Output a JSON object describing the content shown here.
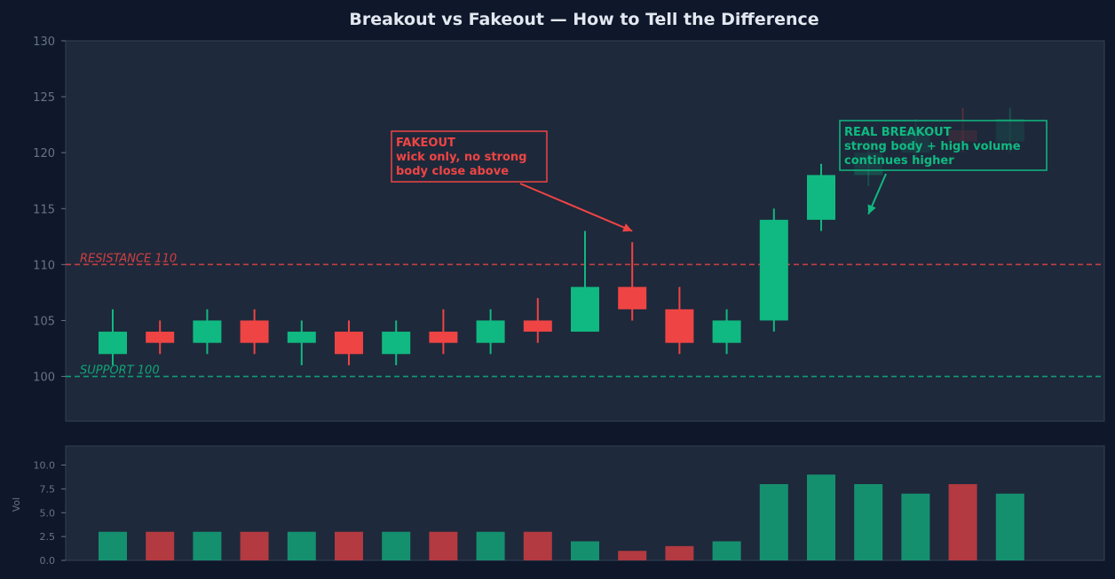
{
  "chart_data": [
    {
      "type": "candlestick",
      "title": "Breakout vs Fakeout — How to Tell the Difference",
      "ylim": [
        96,
        130
      ],
      "yticks": [
        100,
        105,
        110,
        115,
        120,
        125,
        130
      ],
      "grid": false,
      "colors": {
        "up": "#10b981",
        "down": "#ef4444"
      },
      "candles": [
        {
          "o": 102,
          "h": 106,
          "l": 101,
          "c": 104
        },
        {
          "o": 104,
          "h": 105,
          "l": 102,
          "c": 103
        },
        {
          "o": 103,
          "h": 106,
          "l": 102,
          "c": 105
        },
        {
          "o": 105,
          "h": 106,
          "l": 102,
          "c": 103
        },
        {
          "o": 103,
          "h": 105,
          "l": 101,
          "c": 104
        },
        {
          "o": 104,
          "h": 105,
          "l": 101,
          "c": 102
        },
        {
          "o": 102,
          "h": 105,
          "l": 101,
          "c": 104
        },
        {
          "o": 104,
          "h": 106,
          "l": 102,
          "c": 103
        },
        {
          "o": 103,
          "h": 106,
          "l": 102,
          "c": 105
        },
        {
          "o": 105,
          "h": 107,
          "l": 103,
          "c": 104
        },
        {
          "o": 104,
          "h": 113,
          "l": 104,
          "c": 108
        },
        {
          "o": 108,
          "h": 112,
          "l": 105,
          "c": 106
        },
        {
          "o": 106,
          "h": 108,
          "l": 102,
          "c": 103
        },
        {
          "o": 103,
          "h": 106,
          "l": 102,
          "c": 105
        },
        {
          "o": 105,
          "h": 115,
          "l": 104,
          "c": 114
        },
        {
          "o": 114,
          "h": 119,
          "l": 113,
          "c": 118
        },
        {
          "o": 118,
          "h": 121,
          "l": 117,
          "c": 120
        },
        {
          "o": 120,
          "h": 123,
          "l": 119,
          "c": 122
        },
        {
          "o": 122,
          "h": 124,
          "l": 120,
          "c": 121
        },
        {
          "o": 121,
          "h": 124,
          "l": 120,
          "c": 123
        }
      ],
      "levels": [
        {
          "value": 110,
          "label": "RESISTANCE 110",
          "color": "#ef4444"
        },
        {
          "value": 100,
          "label": "SUPPORT 100",
          "color": "#10b981"
        }
      ],
      "annotations": [
        {
          "lines": [
            "FAKEOUT",
            "wick only, no strong",
            "body close above"
          ],
          "color": "#ef4444",
          "target": {
            "x": 11,
            "y": 113
          }
        },
        {
          "lines": [
            "REAL BREAKOUT",
            "strong body + high volume",
            "continues higher"
          ],
          "color": "#10b981",
          "target": {
            "x": 16,
            "y": 114.5
          }
        }
      ]
    },
    {
      "type": "bar",
      "ylabel": "Vol",
      "ylim": [
        0,
        12
      ],
      "yticks": [
        "0.0",
        "2.5",
        "5.0",
        "7.5",
        "10.0"
      ],
      "values": [
        3,
        3,
        3,
        3,
        3,
        3,
        3,
        3,
        3,
        3,
        2,
        1,
        1.5,
        2,
        8,
        9,
        8,
        7,
        8,
        7
      ],
      "colors": {
        "up": "#15906f",
        "down": "#b23a40"
      }
    }
  ]
}
